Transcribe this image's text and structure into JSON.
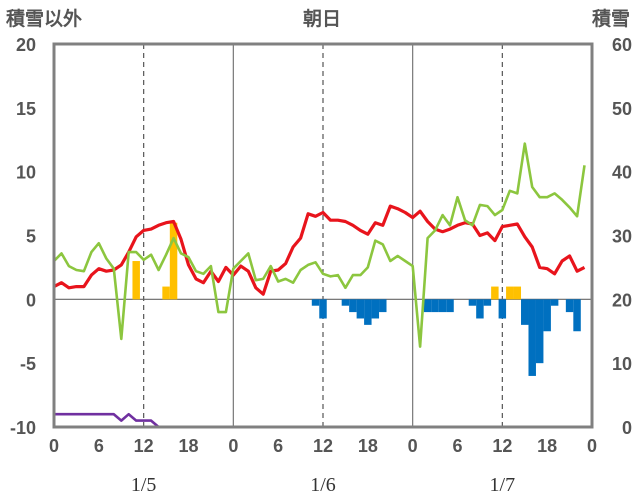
{
  "chart_data": {
    "type": "line",
    "title": "朝日",
    "left_axis_label": "積雪以外",
    "right_axis_label": "積雪",
    "left_ylim": [
      -10,
      20
    ],
    "left_yticks": [
      20,
      15,
      10,
      5,
      0,
      -5,
      -10
    ],
    "left_ytick_labels": [
      "20",
      "15",
      "10",
      "5",
      "0",
      "-5",
      "-10"
    ],
    "right_ylim": [
      0,
      60
    ],
    "right_yticks": [
      60,
      50,
      40,
      30,
      20,
      10,
      0
    ],
    "right_ytick_labels": [
      "60",
      "50",
      "40",
      "30",
      "20",
      "10",
      "0"
    ],
    "xlim": [
      0,
      72
    ],
    "xticks": [
      0,
      6,
      12,
      18,
      24,
      30,
      36,
      42,
      48,
      54,
      60,
      66,
      72
    ],
    "xtick_labels": [
      "0",
      "6",
      "12",
      "18",
      "0",
      "6",
      "12",
      "18",
      "0",
      "6",
      "12",
      "18",
      "0"
    ],
    "day_labels": [
      {
        "x": 12,
        "text": "1/5"
      },
      {
        "x": 36,
        "text": "1/6"
      },
      {
        "x": 60,
        "text": "1/7"
      }
    ],
    "grid": {
      "day_boundaries_solid": [
        24,
        48
      ],
      "twelve_hour_dashed": [
        12,
        36,
        60
      ]
    },
    "colors": {
      "temperature": "#e8141c",
      "green_line": "#8cc63f",
      "snow_depth": "#7030a0",
      "bars_positive": "#ffc000",
      "bars_negative": "#0070c0",
      "frame": "#808080"
    },
    "series": [
      {
        "key": "temperature",
        "axis": "left",
        "x": [
          0,
          1,
          2,
          3,
          4,
          5,
          6,
          7,
          8,
          9,
          10,
          11,
          12,
          13,
          14,
          15,
          16,
          17,
          18,
          19,
          20,
          21,
          22,
          23,
          24,
          25,
          26,
          27,
          28,
          29,
          30,
          31,
          32,
          33,
          34,
          35,
          36,
          37,
          38,
          39,
          40,
          41,
          42,
          43,
          44,
          45,
          46,
          47,
          48,
          49,
          50,
          51,
          52,
          53,
          54,
          55,
          56,
          57,
          58,
          59,
          60,
          61,
          62,
          63,
          64,
          65,
          66,
          67,
          68,
          69,
          70,
          71
        ],
        "values": [
          1.0,
          1.3,
          0.9,
          1.0,
          1.0,
          1.9,
          2.4,
          2.2,
          2.3,
          2.7,
          3.7,
          4.9,
          5.4,
          5.5,
          5.8,
          6.0,
          6.1,
          4.7,
          2.7,
          1.6,
          1.3,
          2.2,
          1.4,
          2.5,
          1.9,
          2.6,
          2.2,
          0.9,
          0.4,
          2.2,
          2.3,
          2.8,
          4.1,
          4.8,
          6.7,
          6.5,
          6.8,
          6.2,
          6.2,
          6.1,
          5.8,
          5.4,
          5.1,
          6.0,
          5.8,
          7.3,
          7.1,
          6.8,
          6.4,
          6.9,
          6.1,
          5.5,
          5.3,
          5.5,
          5.8,
          6.0,
          5.9,
          5.0,
          5.2,
          4.6,
          5.7,
          5.8,
          5.9,
          4.9,
          4.1,
          2.5,
          2.4,
          2.0,
          3.0,
          3.4,
          2.2,
          2.5
        ]
      },
      {
        "key": "green_line",
        "axis": "left",
        "x": [
          0,
          1,
          2,
          3,
          4,
          5,
          6,
          7,
          8,
          9,
          10,
          11,
          12,
          13,
          14,
          15,
          16,
          17,
          18,
          19,
          20,
          21,
          22,
          23,
          24,
          25,
          26,
          27,
          28,
          29,
          30,
          31,
          32,
          33,
          34,
          35,
          36,
          37,
          38,
          39,
          40,
          41,
          42,
          43,
          44,
          45,
          46,
          47,
          48,
          49,
          50,
          51,
          52,
          53,
          54,
          55,
          56,
          57,
          58,
          59,
          60,
          61,
          62,
          63,
          64,
          65,
          66,
          67,
          68,
          69,
          70,
          71
        ],
        "values": [
          3.0,
          3.6,
          2.6,
          2.3,
          2.2,
          3.7,
          4.4,
          3.2,
          2.4,
          -3.1,
          3.7,
          3.7,
          3.1,
          3.5,
          2.3,
          3.5,
          4.8,
          3.6,
          3.3,
          2.2,
          2.0,
          2.6,
          -1.0,
          -1.0,
          2.4,
          3.0,
          3.6,
          1.5,
          1.6,
          2.6,
          1.4,
          1.6,
          1.3,
          2.3,
          2.7,
          2.9,
          2.0,
          1.8,
          1.9,
          0.9,
          1.9,
          1.9,
          2.5,
          4.6,
          4.3,
          3.0,
          3.4,
          3.0,
          2.6,
          -3.7,
          4.8,
          5.4,
          6.6,
          5.8,
          8.0,
          6.2,
          5.8,
          7.4,
          7.3,
          6.6,
          7.0,
          8.5,
          8.3,
          12.2,
          8.8,
          8.0,
          8.0,
          8.3,
          7.8,
          7.2,
          6.5,
          10.5
        ]
      },
      {
        "key": "snow_depth",
        "axis": "right",
        "x": [
          0,
          1,
          2,
          3,
          4,
          5,
          6,
          7,
          8,
          9,
          10,
          11,
          12,
          13,
          14,
          15,
          16,
          17,
          18,
          19,
          20,
          21,
          22,
          23,
          24,
          25,
          26,
          27,
          28,
          29,
          30,
          31,
          32,
          33,
          34,
          35,
          36,
          37,
          38,
          39,
          40,
          41,
          42,
          43,
          44,
          45,
          46,
          47,
          48,
          49,
          50,
          51,
          52,
          53,
          54,
          55,
          56,
          57,
          58,
          59,
          60,
          61,
          62,
          63,
          64,
          65,
          66,
          67,
          68,
          69,
          70,
          71,
          72
        ],
        "values": [
          2,
          2,
          2,
          2,
          2,
          2,
          2,
          2,
          2,
          1,
          2,
          1,
          1,
          1,
          0,
          0,
          0,
          0,
          0,
          0,
          0,
          0,
          0,
          0,
          0,
          0,
          0,
          0,
          0,
          0,
          0,
          0,
          0,
          0,
          0,
          0,
          0,
          0,
          0,
          0,
          0,
          0,
          0,
          0,
          0,
          0,
          0,
          0,
          0,
          0,
          0,
          0,
          0,
          0,
          0,
          0,
          0,
          0,
          0,
          0,
          0,
          0,
          0,
          0,
          0,
          0,
          0,
          0,
          0,
          0,
          0,
          0,
          0
        ]
      },
      {
        "key": "bars",
        "axis": "left",
        "kind": "bar",
        "x": [
          11,
          15,
          16,
          35,
          36,
          39,
          40,
          41,
          42,
          43,
          44,
          50,
          51,
          52,
          53,
          56,
          57,
          58,
          59,
          60,
          61,
          62,
          63,
          64,
          65,
          66,
          67,
          69,
          70
        ],
        "values": [
          3,
          1,
          6,
          -0.5,
          -1.5,
          -0.5,
          -1,
          -1.5,
          -2,
          -1.5,
          -1,
          -1,
          -1,
          -1,
          -1,
          -0.5,
          -1.5,
          -0.5,
          1,
          -1.5,
          1,
          1,
          -2,
          -6,
          -5,
          -2.5,
          -0.5,
          -1,
          -2.5
        ]
      }
    ]
  }
}
